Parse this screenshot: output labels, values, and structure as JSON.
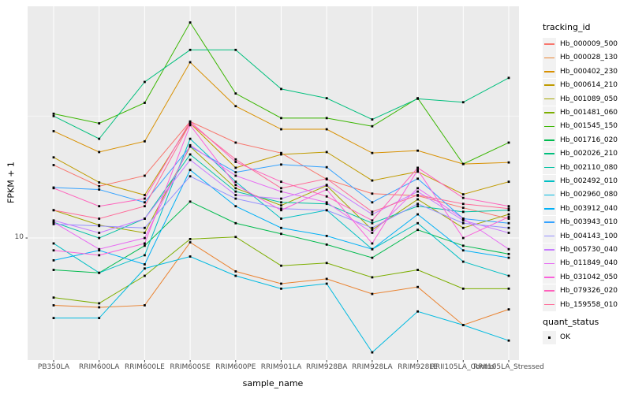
{
  "chart_data": {
    "type": "line",
    "title": "",
    "xlabel": "sample_name",
    "ylabel": "FPKM + 1",
    "y_scale": "log10",
    "ylim": [
      3.16,
      89
    ],
    "y_ticks": [
      {
        "value": 10,
        "label": "10"
      }
    ],
    "grid": "major-white-on-gray",
    "legend_position": "right",
    "point_shape": "square",
    "point_color": "#000000",
    "categories": [
      "PB350LA",
      "RRIM600LA",
      "RRIM600LE",
      "RRIM600SE",
      "RRIM600PE",
      "RRIM901LA",
      "RRIM928BA",
      "RRIM928LA",
      "RRIM928LE",
      "RRII105LA_Control",
      "RRII105LA_Stressed"
    ],
    "series": [
      {
        "name": "Hb_000009_500",
        "color": "#F8766D",
        "values": [
          19.9,
          16.3,
          18.0,
          30.0,
          24.6,
          22.3,
          17.4,
          15.2,
          14.9,
          13.3,
          12.0
        ]
      },
      {
        "name": "Hb_000028_130",
        "color": "#EA8331",
        "values": [
          5.3,
          5.2,
          5.3,
          9.6,
          7.3,
          6.5,
          6.8,
          5.9,
          6.3,
          4.4,
          5.1
        ]
      },
      {
        "name": "Hb_000402_230",
        "color": "#D89000",
        "values": [
          27.4,
          22.5,
          24.9,
          52.5,
          34.7,
          27.9,
          27.9,
          22.3,
          22.8,
          20.1,
          20.4
        ]
      },
      {
        "name": "Hb_000614_210",
        "color": "#C09B00",
        "values": [
          21.4,
          16.9,
          15.0,
          29.5,
          19.4,
          22.0,
          22.5,
          17.2,
          18.7,
          15.1,
          17.0
        ]
      },
      {
        "name": "Hb_001089_050",
        "color": "#A3A500",
        "values": [
          13.0,
          11.3,
          10.5,
          23.7,
          16.0,
          13.6,
          16.4,
          10.8,
          14.4,
          11.0,
          12.5
        ]
      },
      {
        "name": "Hb_001481_060",
        "color": "#7CAE00",
        "values": [
          5.7,
          5.4,
          7.0,
          9.9,
          10.1,
          7.7,
          7.9,
          6.9,
          7.4,
          6.2,
          6.2
        ]
      },
      {
        "name": "Hb_001545_150",
        "color": "#39B600",
        "values": [
          32.3,
          29.5,
          35.8,
          76.4,
          39.1,
          31.0,
          31.0,
          28.7,
          37.4,
          20.1,
          24.6
        ]
      },
      {
        "name": "Hb_001716_020",
        "color": "#00BB4E",
        "values": [
          7.4,
          7.2,
          9.3,
          14.1,
          11.5,
          10.4,
          9.4,
          8.3,
          10.8,
          9.3,
          8.6
        ]
      },
      {
        "name": "Hb_002026_210",
        "color": "#00BF7D",
        "values": [
          31.6,
          25.5,
          43.6,
          59.0,
          59.0,
          40.8,
          37.4,
          30.6,
          37.2,
          36.0,
          45.3
        ]
      },
      {
        "name": "Hb_002110_080",
        "color": "#00C1A3",
        "values": [
          11.6,
          10.0,
          12.0,
          22.0,
          15.5,
          14.0,
          13.8,
          11.5,
          13.5,
          12.8,
          13.0
        ]
      },
      {
        "name": "Hb_002492_010",
        "color": "#00BFC4",
        "values": [
          9.5,
          7.2,
          8.5,
          25.5,
          17.0,
          12.0,
          13.0,
          9.0,
          11.5,
          8.0,
          7.0
        ]
      },
      {
        "name": "Hb_002960_080",
        "color": "#00BAE0",
        "values": [
          4.7,
          4.7,
          7.5,
          8.4,
          7.0,
          6.2,
          6.5,
          3.4,
          5.0,
          4.4,
          3.8
        ]
      },
      {
        "name": "Hb_003912_040",
        "color": "#00B0F6",
        "values": [
          8.1,
          8.9,
          7.8,
          19.0,
          13.5,
          11.0,
          10.2,
          9.0,
          12.5,
          8.9,
          8.3
        ]
      },
      {
        "name": "Hb_003943_010",
        "color": "#35A2FF",
        "values": [
          16.1,
          15.8,
          14.0,
          23.7,
          18.6,
          20.0,
          19.5,
          14.0,
          17.5,
          12.0,
          11.5
        ]
      },
      {
        "name": "Hb_004143_100",
        "color": "#9590FF",
        "values": [
          11.4,
          11.2,
          11.0,
          17.9,
          14.5,
          13.2,
          13.0,
          11.0,
          13.8,
          11.5,
          11.0
        ]
      },
      {
        "name": "Hb_005730_040",
        "color": "#C77CFF",
        "values": [
          11.8,
          10.5,
          12.0,
          20.9,
          15.0,
          14.5,
          16.5,
          12.5,
          15.5,
          11.8,
          10.5
        ]
      },
      {
        "name": "Hb_011849_040",
        "color": "#E76BF3",
        "values": [
          11.6,
          9.0,
          10.0,
          24.0,
          18.0,
          15.5,
          14.0,
          10.5,
          16.0,
          12.0,
          9.0
        ]
      },
      {
        "name": "Hb_031042_050",
        "color": "#FA62DB",
        "values": [
          8.9,
          8.5,
          9.5,
          29.0,
          16.5,
          13.0,
          15.8,
          9.5,
          19.0,
          10.0,
          12.2
        ]
      },
      {
        "name": "Hb_079326_020",
        "color": "#FF62BC",
        "values": [
          16.0,
          13.5,
          14.5,
          30.0,
          20.5,
          17.0,
          14.8,
          11.8,
          19.4,
          14.6,
          13.5
        ]
      },
      {
        "name": "Hb_159558_010",
        "color": "#FF6A98",
        "values": [
          13.0,
          12.0,
          13.5,
          29.5,
          21.0,
          16.0,
          17.5,
          12.8,
          15.0,
          13.8,
          13.2
        ]
      }
    ],
    "legend": {
      "color_title": "tracking_id",
      "shape_title": "quant_status",
      "shape_items": [
        {
          "label": "OK"
        }
      ]
    }
  },
  "theme": {
    "panel_bg": "#EBEBEB",
    "grid_color": "#FFFFFF",
    "tick_color": "#333333",
    "tick_text_color": "#4D4D4D",
    "legend_key_bg": "#F2F2F2",
    "background": "#FFFFFF"
  }
}
